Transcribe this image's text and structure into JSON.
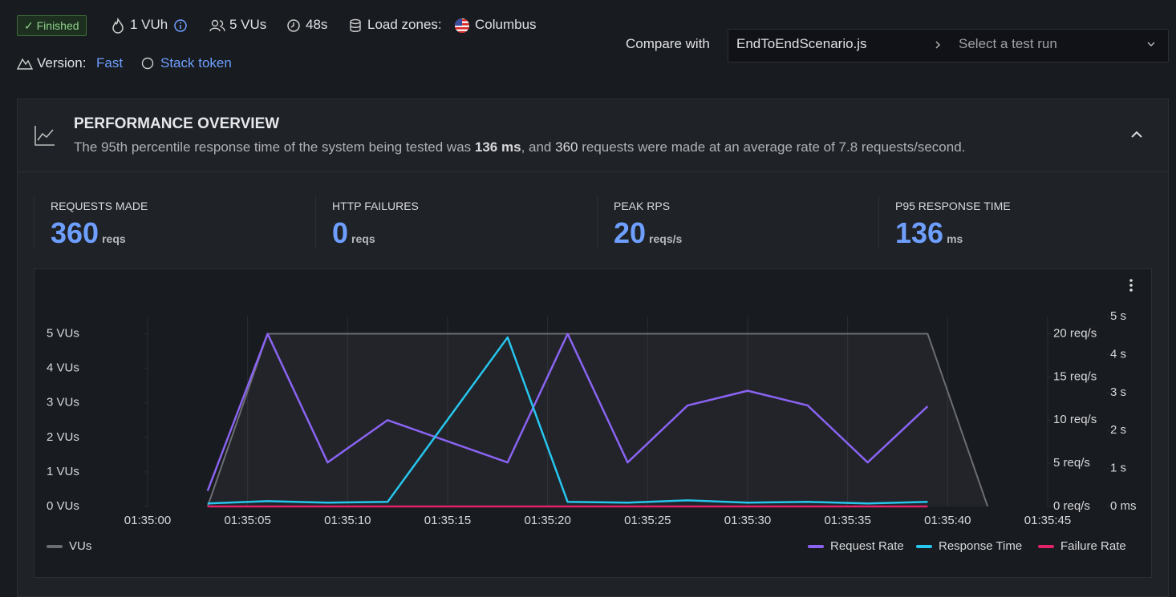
{
  "header": {
    "status": "Finished",
    "vuh": "1 VUh",
    "vus": "5 VUs",
    "duration": "48s",
    "load_zones_label": "Load zones:",
    "load_zone": "Columbus",
    "version_label": "Version:",
    "version": "Fast",
    "stack_token": "Stack token",
    "compare_label": "Compare with",
    "compare_script": "EndToEndScenario.js",
    "compare_placeholder": "Select a test run"
  },
  "overview": {
    "title": "PERFORMANCE OVERVIEW",
    "summary": [
      "The 95th percentile response time of the system being tested was ",
      "136 ms",
      ", and ",
      "360",
      " requests were made at an average rate of 7.8 requests/second."
    ]
  },
  "stats": [
    {
      "label": "REQUESTS MADE",
      "value": 360,
      "unit": "reqs"
    },
    {
      "label": "HTTP FAILURES",
      "value": 0,
      "unit": "reqs"
    },
    {
      "label": "PEAK RPS",
      "value": 20,
      "unit": "reqs/s"
    },
    {
      "label": "P95 RESPONSE TIME",
      "value": 136,
      "unit": "ms"
    }
  ],
  "chart_data": {
    "type": "line",
    "series": [
      {
        "name": "VUs",
        "color": "#6b6d72",
        "area": true,
        "x": [
          "01:35:03",
          "01:35:06",
          "01:35:39",
          "01:35:42"
        ],
        "values": [
          0,
          5,
          5,
          0
        ]
      },
      {
        "name": "Request Rate",
        "color": "#8a63f2",
        "axis": "y2",
        "x": [
          "01:35:03",
          "01:35:06",
          "01:35:09",
          "01:35:12",
          "01:35:18",
          "01:35:21",
          "01:35:24",
          "01:35:27",
          "01:35:30",
          "01:35:33",
          "01:35:36",
          "01:35:39"
        ],
        "values": [
          1.8,
          20,
          5.1,
          10,
          5.1,
          20,
          5.1,
          11.7,
          13.4,
          11.7,
          5.1,
          11.6
        ]
      },
      {
        "name": "Response Time",
        "color": "#27c6ef",
        "axis": "y3",
        "x": [
          "01:35:03",
          "01:35:06",
          "01:35:09",
          "01:35:12",
          "01:35:18",
          "01:35:21",
          "01:35:24",
          "01:35:27",
          "01:35:30",
          "01:35:33",
          "01:35:36",
          "01:35:39"
        ],
        "values": [
          0.08,
          0.14,
          0.1,
          0.12,
          4.45,
          0.12,
          0.1,
          0.16,
          0.1,
          0.12,
          0.08,
          0.12
        ]
      },
      {
        "name": "Failure Rate",
        "color": "#e3226b",
        "axis": "y2",
        "x": [
          "01:35:03",
          "01:35:06",
          "01:35:09",
          "01:35:12",
          "01:35:18",
          "01:35:21",
          "01:35:24",
          "01:35:27",
          "01:35:30",
          "01:35:33",
          "01:35:36",
          "01:35:39"
        ],
        "values": [
          0,
          0,
          0,
          0,
          0,
          0,
          0,
          0,
          0,
          0,
          0,
          0
        ]
      }
    ],
    "xlim": [
      "01:35:00",
      "01:35:45"
    ],
    "xticks": [
      "01:35:00",
      "01:35:05",
      "01:35:10",
      "01:35:15",
      "01:35:20",
      "01:35:25",
      "01:35:30",
      "01:35:35",
      "01:35:40",
      "01:35:45"
    ],
    "ylim": [
      0,
      5.5
    ],
    "yticks": [
      {
        "value": 0,
        "label": "0 VUs"
      },
      {
        "value": 1,
        "label": "1 VUs"
      },
      {
        "value": 2,
        "label": "2 VUs"
      },
      {
        "value": 3,
        "label": "3 VUs"
      },
      {
        "value": 4,
        "label": "4 VUs"
      },
      {
        "value": 5,
        "label": "5 VUs"
      }
    ],
    "y2lim": [
      0,
      22
    ],
    "y2ticks": [
      {
        "value": 0,
        "label": "0 req/s"
      },
      {
        "value": 5,
        "label": "5 req/s"
      },
      {
        "value": 10,
        "label": "10 req/s"
      },
      {
        "value": 15,
        "label": "15 req/s"
      },
      {
        "value": 20,
        "label": "20 req/s"
      }
    ],
    "y3lim": [
      0,
      5
    ],
    "y3ticks": [
      {
        "value": 0,
        "label": "0 ms"
      },
      {
        "value": 1,
        "label": "1 s"
      },
      {
        "value": 2,
        "label": "2 s"
      },
      {
        "value": 3,
        "label": "3 s"
      },
      {
        "value": 4,
        "label": "4 s"
      },
      {
        "value": 5,
        "label": "5 s"
      }
    ],
    "grid": "x",
    "legend": "bottom"
  }
}
